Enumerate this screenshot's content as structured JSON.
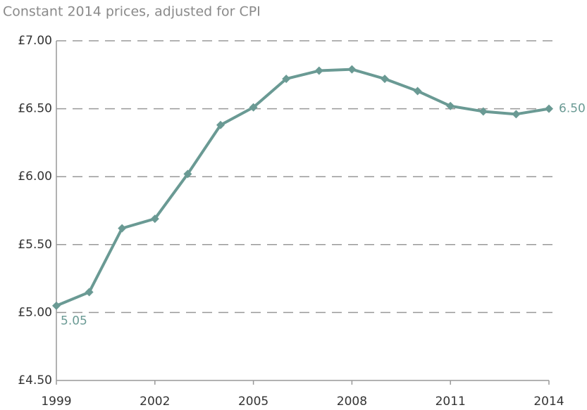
{
  "chart_data": {
    "type": "line",
    "subtitle": "Constant 2014 prices, adjusted for CPI",
    "x": [
      1999,
      2000,
      2001,
      2002,
      2003,
      2004,
      2005,
      2006,
      2007,
      2008,
      2009,
      2010,
      2011,
      2012,
      2013,
      2014
    ],
    "series": [
      {
        "color": "#6a9a94",
        "values": [
          5.05,
          5.15,
          5.62,
          5.69,
          6.02,
          6.38,
          6.51,
          6.72,
          6.78,
          6.79,
          6.72,
          6.63,
          6.52,
          6.48,
          6.46,
          6.5
        ],
        "value_labels": [
          "5.05",
          null,
          null,
          null,
          null,
          null,
          null,
          null,
          null,
          null,
          null,
          null,
          null,
          null,
          null,
          "6.50"
        ]
      }
    ],
    "xlim": [
      1999,
      2014
    ],
    "xticks": [
      1999,
      2002,
      2005,
      2008,
      2011,
      2014
    ],
    "ylim": [
      4.5,
      7
    ],
    "yticks": [
      {
        "value": 4.5,
        "label": "£4.50"
      },
      {
        "value": 5,
        "label": "£5.00"
      },
      {
        "value": 5.5,
        "label": "£5.50"
      },
      {
        "value": 6,
        "label": "£6.00"
      },
      {
        "value": 6.5,
        "label": "£6.50"
      },
      {
        "value": 7,
        "label": "£7.00"
      }
    ],
    "grid": true
  }
}
